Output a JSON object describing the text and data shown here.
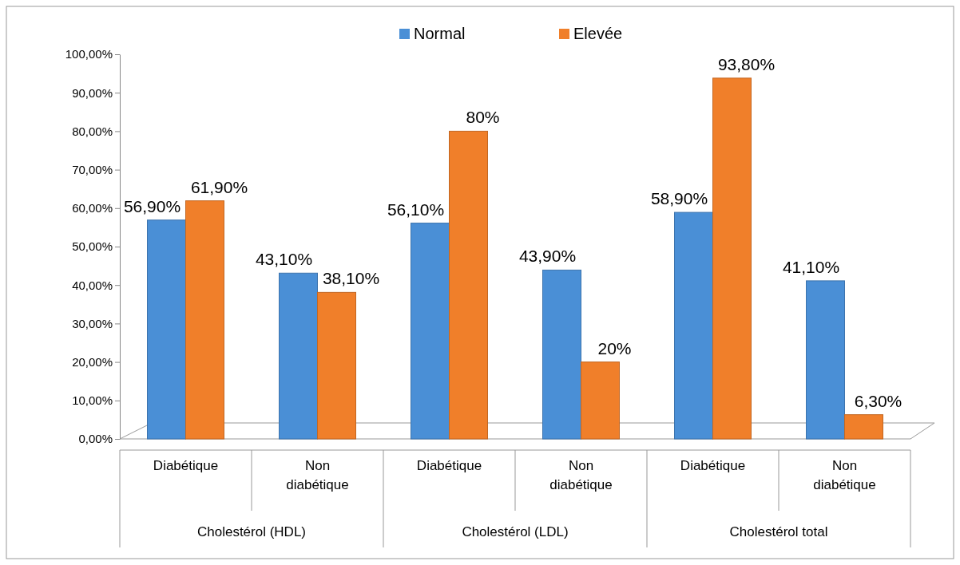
{
  "chart_data": {
    "type": "bar",
    "categories": [
      "Diabétique",
      "Non diabétique",
      "Diabétique",
      "Non diabétique",
      "Diabétique",
      "Non diabétique"
    ],
    "series": [
      {
        "name": "Normal",
        "color": "#4a8fd6",
        "values": [
          56.9,
          43.1,
          56.1,
          43.9,
          58.9,
          41.1
        ],
        "value_labels": [
          "56,90%",
          "43,10%",
          "56,10%",
          "43,90%",
          "58,90%",
          "41,10%"
        ]
      },
      {
        "name": "Elevée",
        "color": "#f07f2a",
        "values": [
          61.9,
          38.1,
          80,
          20,
          93.8,
          6.3
        ],
        "value_labels": [
          "61,90%",
          "38,10%",
          "80%",
          "20%",
          "93,80%",
          "6,30%"
        ]
      }
    ],
    "annotations": [
      "Cholestérol (HDL)",
      "Cholestérol (LDL)",
      "Cholestérol total"
    ],
    "ylim": [
      0,
      100
    ],
    "yticks": [
      {
        "value": 0,
        "label": "0,00%"
      },
      {
        "value": 10,
        "label": "10,00%"
      },
      {
        "value": 20,
        "label": "20,00%"
      },
      {
        "value": 30,
        "label": "30,00%"
      },
      {
        "value": 40,
        "label": "40,00%"
      },
      {
        "value": 50,
        "label": "50,00%"
      },
      {
        "value": 60,
        "label": "60,00%"
      },
      {
        "value": 70,
        "label": "70,00%"
      },
      {
        "value": 80,
        "label": "80,00%"
      },
      {
        "value": 90,
        "label": "90,00%"
      },
      {
        "value": 100,
        "label": "100,00%"
      }
    ],
    "legend": "top"
  }
}
